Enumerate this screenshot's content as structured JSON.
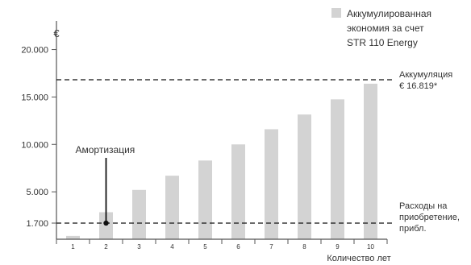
{
  "chart_data": {
    "type": "bar",
    "title": "",
    "xlabel": "Количество лет",
    "ylabel": "€",
    "categories": [
      "1",
      "2",
      "3",
      "4",
      "5",
      "6",
      "7",
      "8",
      "9",
      "10"
    ],
    "series": [
      {
        "name": "Аккумулированная экономия за счет STR 110 Energy",
        "values": [
          350,
          2850,
          5200,
          6700,
          8300,
          10000,
          11600,
          13150,
          14750,
          16400
        ]
      }
    ],
    "ylim": [
      0,
      22000
    ],
    "yticks": [
      {
        "value": 1700,
        "label": "1.700"
      },
      {
        "value": 5000,
        "label": "5.000"
      },
      {
        "value": 10000,
        "label": "10.000"
      },
      {
        "value": 15000,
        "label": "15.000"
      },
      {
        "value": 20000,
        "label": "20.000"
      }
    ],
    "reference_lines": [
      {
        "value": 16819,
        "label_lines": [
          "Аккумуляция",
          "€ 16.819*"
        ]
      },
      {
        "value": 1700,
        "label_lines": [
          "Расходы на",
          "приобретение,",
          "прибл."
        ]
      }
    ],
    "annotations": [
      {
        "text": "Амортизация",
        "category": "2",
        "value": 1700
      }
    ],
    "legend": {
      "position": "top-right",
      "lines": [
        "Аккумулированная",
        "экономия за счет",
        "STR 110 Energy"
      ]
    },
    "grid": false,
    "colors": {
      "bar": "#d3d3d3",
      "axis": "#555555",
      "text": "#333333",
      "reference_line": "#111111",
      "marker": "#111111"
    }
  }
}
